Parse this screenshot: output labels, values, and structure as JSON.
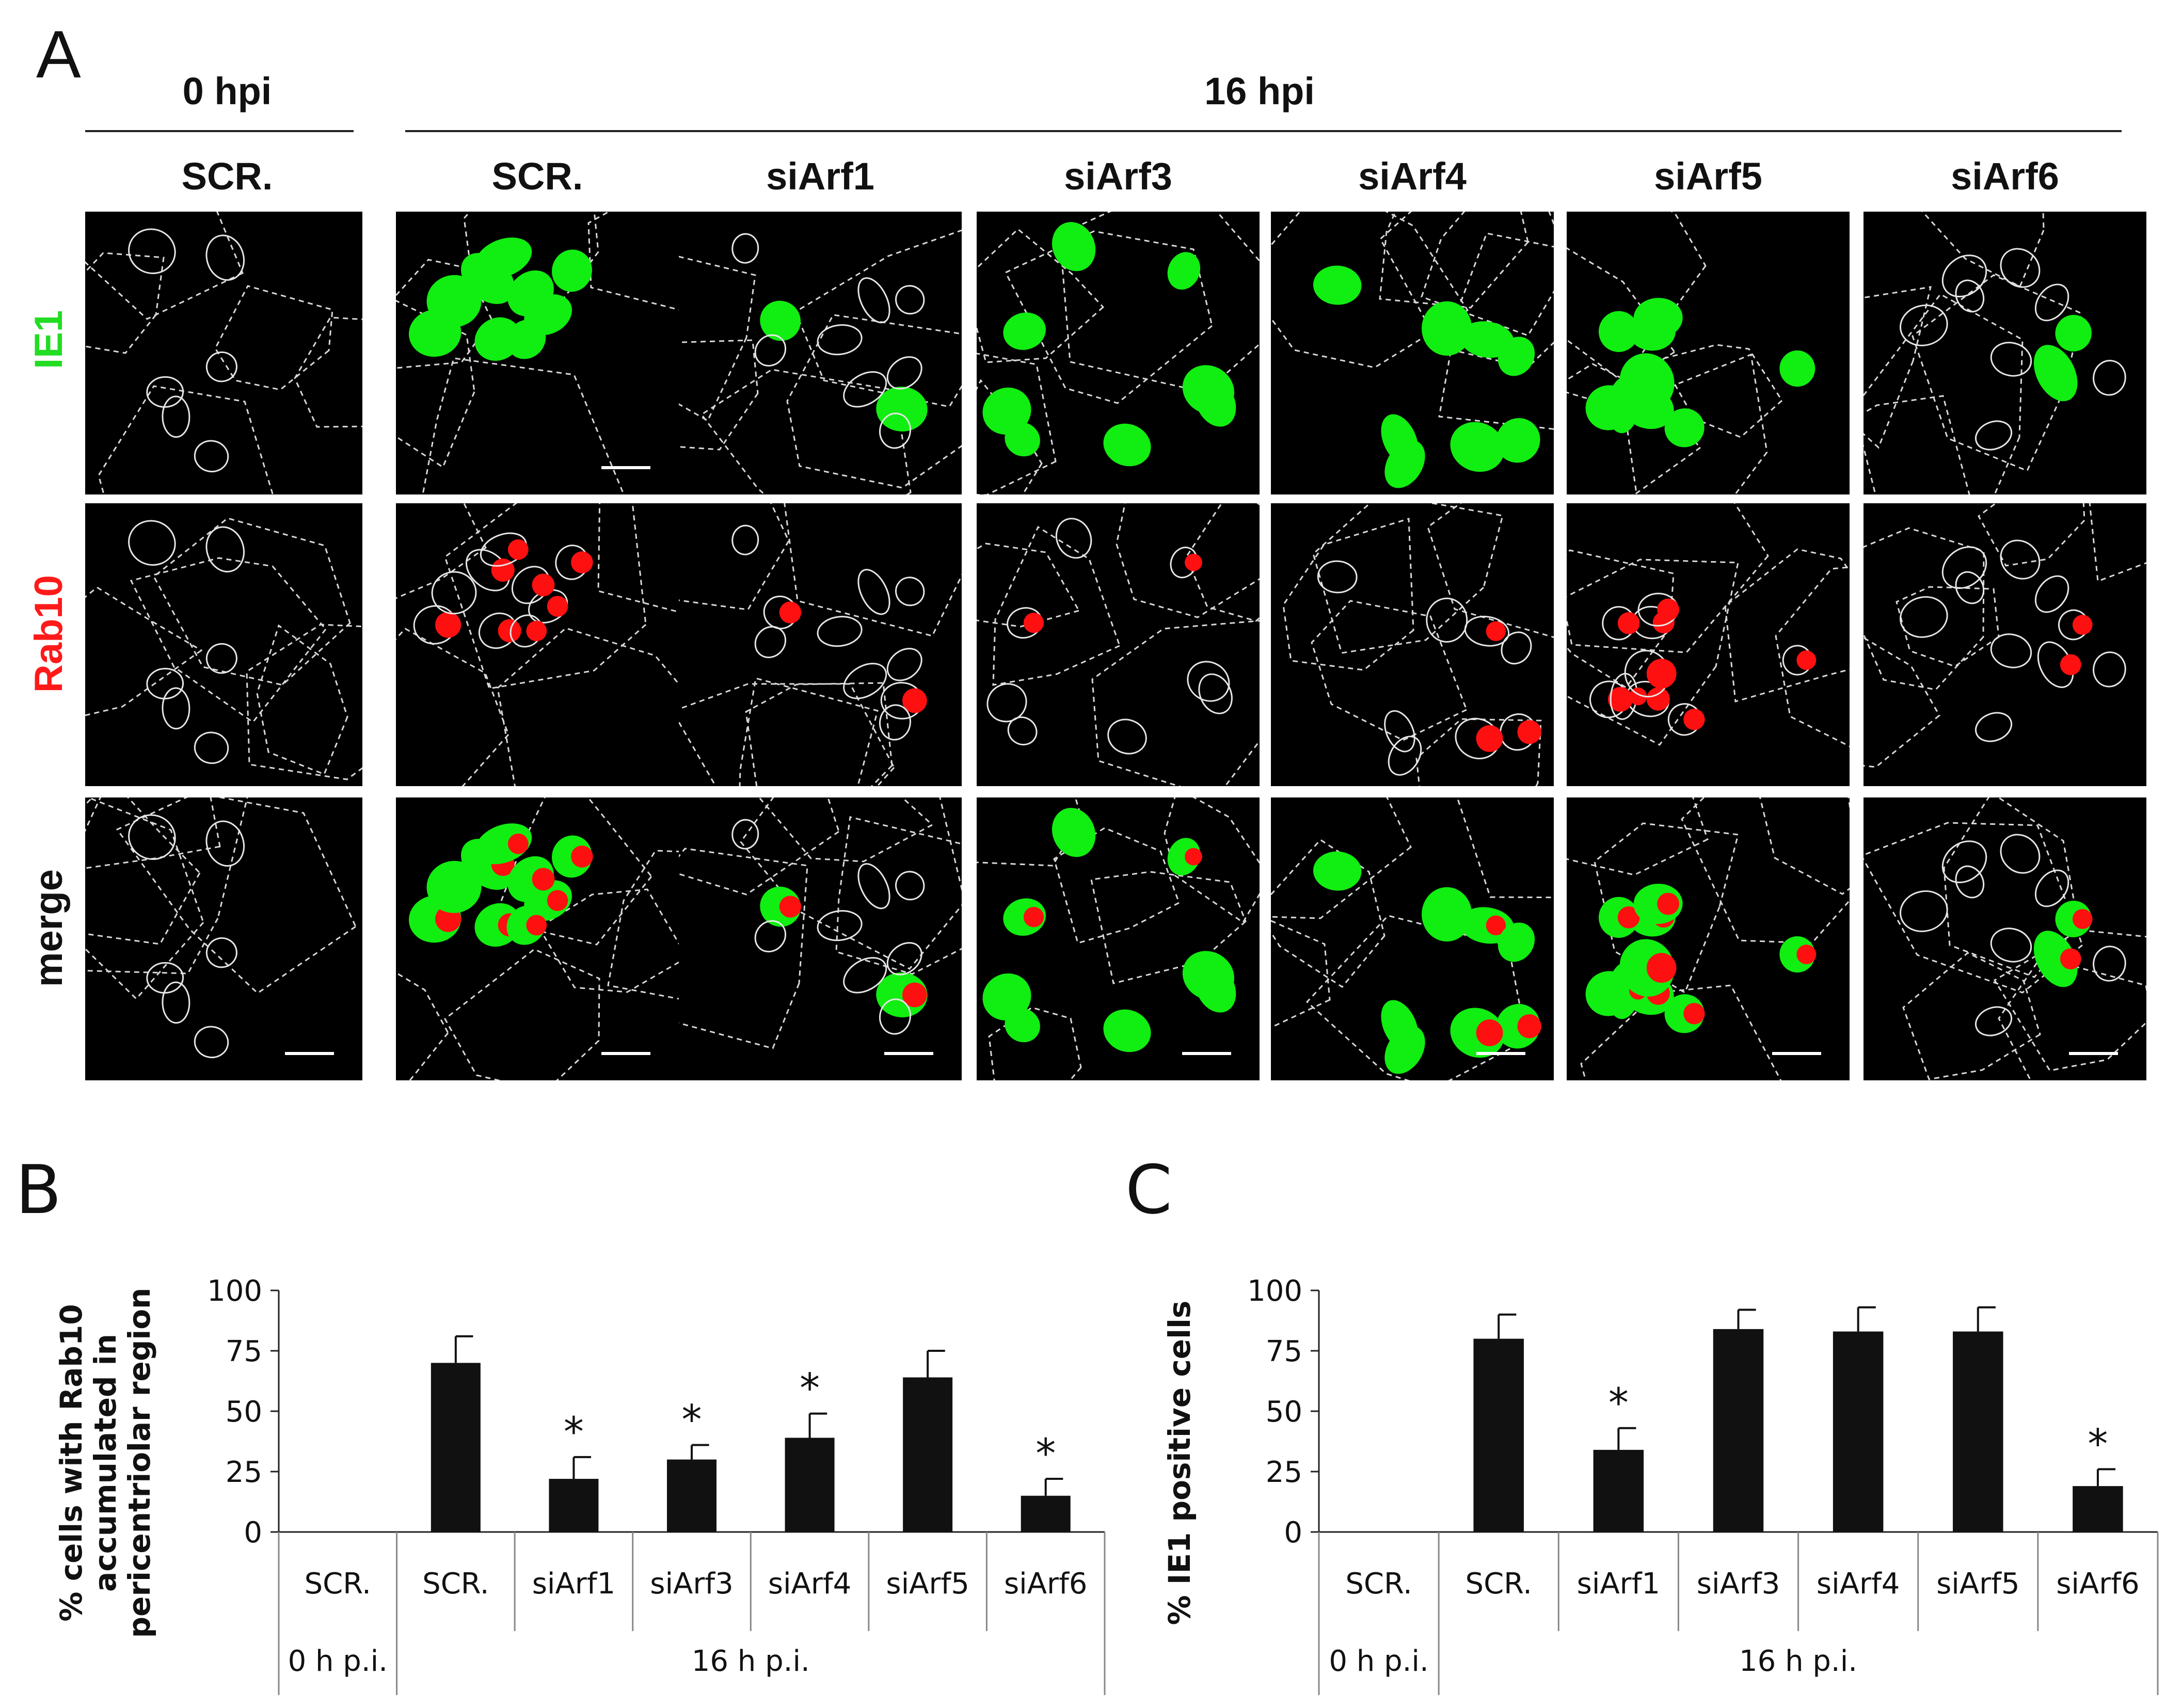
{
  "panel_a": {
    "letter": "A",
    "time_headers": [
      "0 hpi",
      "16 hpi"
    ],
    "columns": [
      "SCR.",
      "SCR.",
      "siArf1",
      "siArf3",
      "siArf4",
      "siArf5",
      "siArf6"
    ],
    "rows": [
      {
        "label": "IE1",
        "color": "#22dd22"
      },
      {
        "label": "Rab10",
        "color": "#ff1a1a"
      },
      {
        "label": "merge",
        "color": "#111111"
      }
    ]
  },
  "chart_data": [
    {
      "panel": "B",
      "type": "bar",
      "ylabel_lines": [
        "% cells with Rab10",
        "accumulated in",
        "pericentriolar region"
      ],
      "ylim": [
        0,
        100
      ],
      "yticks": [
        0,
        25,
        50,
        75,
        100
      ],
      "categories": [
        "SCR.",
        "SCR.",
        "siArf1",
        "siArf3",
        "siArf4",
        "siArf5",
        "siArf6"
      ],
      "groups": [
        {
          "label": "0 h p.i.",
          "span": 1
        },
        {
          "label": "16 h p.i.",
          "span": 6
        }
      ],
      "values": [
        0,
        70,
        22,
        30,
        39,
        64,
        15
      ],
      "errors": [
        0,
        11,
        9,
        6,
        10,
        11,
        7
      ],
      "significance": [
        "",
        "",
        "*",
        "*",
        "*",
        "",
        "*"
      ],
      "bar_color": "#111111"
    },
    {
      "panel": "C",
      "type": "bar",
      "ylabel_lines": [
        "% IE1 positive cells"
      ],
      "ylim": [
        0,
        100
      ],
      "yticks": [
        0,
        25,
        50,
        75,
        100
      ],
      "categories": [
        "SCR.",
        "SCR.",
        "siArf1",
        "siArf3",
        "siArf4",
        "siArf5",
        "siArf6"
      ],
      "groups": [
        {
          "label": "0 h p.i.",
          "span": 1
        },
        {
          "label": "16 h p.i.",
          "span": 6
        }
      ],
      "values": [
        0,
        80,
        34,
        84,
        83,
        83,
        19
      ],
      "errors": [
        0,
        10,
        9,
        8,
        10,
        10,
        7
      ],
      "significance": [
        "",
        "",
        "*",
        "",
        "",
        "",
        "*"
      ],
      "bar_color": "#111111"
    }
  ]
}
